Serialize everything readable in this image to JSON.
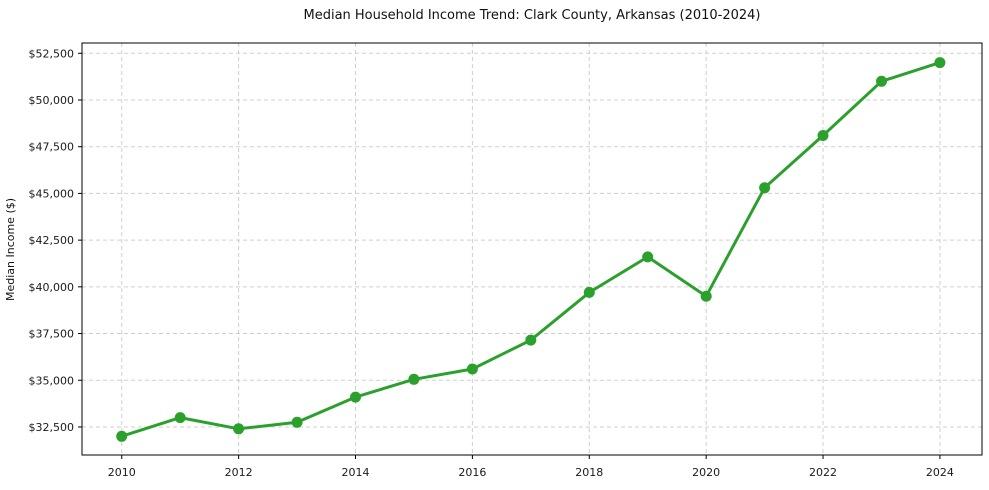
{
  "chart_data": {
    "type": "line",
    "title": "Median Household Income Trend: Clark County, Arkansas (2010-2024)",
    "ylabel": "Median Income ($)",
    "xlabel": "",
    "x": [
      2010,
      2011,
      2012,
      2013,
      2014,
      2015,
      2016,
      2017,
      2018,
      2019,
      2020,
      2021,
      2022,
      2023,
      2024
    ],
    "values": [
      32000,
      33000,
      32400,
      32750,
      34100,
      35050,
      35600,
      37150,
      39700,
      41600,
      39500,
      45300,
      48100,
      51000,
      52000
    ],
    "xticks": {
      "values": [
        2010,
        2012,
        2014,
        2016,
        2018,
        2020,
        2022,
        2024
      ],
      "labels": [
        "2010",
        "2012",
        "2014",
        "2016",
        "2018",
        "2020",
        "2022",
        "2024"
      ]
    },
    "yticks": {
      "values": [
        32500,
        35000,
        37500,
        40000,
        42500,
        45000,
        47500,
        50000,
        52500
      ],
      "labels": [
        "$32,500",
        "$35,000",
        "$37,500",
        "$40,000",
        "$42,500",
        "$45,000",
        "$47,500",
        "$50,000",
        "$52,500"
      ]
    },
    "xlim": [
      2009.32,
      2024.72
    ],
    "ylim": [
      31000,
      53050
    ],
    "grid": true,
    "grid_style": "dashed",
    "legend": "none",
    "colors": {
      "line": "#2ca02c",
      "marker": "#2ca02c",
      "grid": "#cfcfcf",
      "spine": "#000000",
      "tick_text": "#1a1a1a",
      "background": "#ffffff"
    }
  }
}
